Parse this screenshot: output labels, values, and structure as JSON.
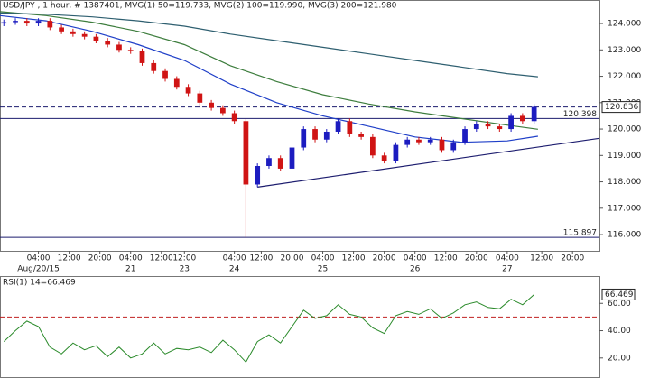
{
  "chart_data": [
    {
      "type": "candlestick",
      "title": "USD/JPY , 1 hour, # 1387401, MVG(1) 50=119.733, MVG(2) 100=119.990, MVG(3) 200=121.980",
      "xlim": [
        -10,
        146
      ],
      "ylim": [
        115.66,
        124.72
      ],
      "yticks": [
        {
          "value": 116,
          "label": "116.000"
        },
        {
          "value": 117,
          "label": "117.000"
        },
        {
          "value": 118,
          "label": "118.000"
        },
        {
          "value": 119,
          "label": "119.000"
        },
        {
          "value": 120,
          "label": "120.000"
        },
        {
          "value": 121,
          "label": "121.000"
        },
        {
          "value": 122,
          "label": "122.000"
        },
        {
          "value": 123,
          "label": "123.000"
        },
        {
          "value": 124,
          "label": "124.000"
        }
      ],
      "xticks": [
        {
          "value": 0,
          "label": "04:00"
        },
        {
          "value": 8,
          "label": "12:00"
        },
        {
          "value": 16,
          "label": "20:00"
        },
        {
          "value": 24,
          "label": "04:00"
        },
        {
          "value": 32,
          "label": "12:00"
        },
        {
          "value": 38,
          "label": "12:00"
        },
        {
          "value": 51,
          "label": "04:00"
        },
        {
          "value": 58,
          "label": "12:00"
        },
        {
          "value": 66,
          "label": "20:00"
        },
        {
          "value": 74,
          "label": "04:00"
        },
        {
          "value": 82,
          "label": "12:00"
        },
        {
          "value": 90,
          "label": "20:00"
        },
        {
          "value": 98,
          "label": "04:00"
        },
        {
          "value": 106,
          "label": "12:00"
        },
        {
          "value": 114,
          "label": "20:00"
        },
        {
          "value": 122,
          "label": "04:00"
        },
        {
          "value": 131,
          "label": "12:00"
        },
        {
          "value": 139,
          "label": "20:00"
        }
      ],
      "day_ticks": [
        {
          "value": 0,
          "label": "Aug/20/15"
        },
        {
          "value": 24,
          "label": "21"
        },
        {
          "value": 38,
          "label": "23"
        },
        {
          "value": 51,
          "label": "24"
        },
        {
          "value": 74,
          "label": "25"
        },
        {
          "value": 98,
          "label": "26"
        },
        {
          "value": 122,
          "label": "27"
        }
      ],
      "color_up": "#1c1cc0",
      "color_down": "#d01414",
      "x": [
        -9,
        -6,
        -3,
        0,
        3,
        6,
        9,
        12,
        15,
        18,
        21,
        24,
        27,
        30,
        33,
        36,
        39,
        42,
        45,
        48,
        51,
        54,
        57,
        60,
        63,
        66,
        69,
        72,
        75,
        78,
        81,
        84,
        87,
        90,
        93,
        96,
        99,
        102,
        105,
        108,
        111,
        114,
        117,
        120,
        123,
        126,
        129
      ],
      "open": [
        124.0,
        124.05,
        124.1,
        124.0,
        124.1,
        123.85,
        123.7,
        123.6,
        123.5,
        123.35,
        123.2,
        123.0,
        122.95,
        122.5,
        122.2,
        121.9,
        121.6,
        121.35,
        121.0,
        120.8,
        120.6,
        120.3,
        117.9,
        118.6,
        118.9,
        118.5,
        119.3,
        120.0,
        119.6,
        119.9,
        120.3,
        119.8,
        119.7,
        119.0,
        118.8,
        119.4,
        119.6,
        119.5,
        119.6,
        119.2,
        119.5,
        120.0,
        120.2,
        120.1,
        120.0,
        120.5,
        120.3
      ],
      "high": [
        124.15,
        124.2,
        124.2,
        124.2,
        124.2,
        123.95,
        123.8,
        123.7,
        123.6,
        123.45,
        123.3,
        123.1,
        123.05,
        122.6,
        122.3,
        122.0,
        121.7,
        121.45,
        121.1,
        120.9,
        120.7,
        120.4,
        118.7,
        119.0,
        119.0,
        119.4,
        120.1,
        120.1,
        120.0,
        120.4,
        120.4,
        119.9,
        119.8,
        119.1,
        119.5,
        119.7,
        119.7,
        119.7,
        119.7,
        119.6,
        120.1,
        120.3,
        120.3,
        120.2,
        120.6,
        120.6,
        120.95
      ],
      "low": [
        123.9,
        123.95,
        123.9,
        123.9,
        123.75,
        123.6,
        123.5,
        123.4,
        123.25,
        123.1,
        122.9,
        122.85,
        122.4,
        122.1,
        121.8,
        121.5,
        121.25,
        120.9,
        120.7,
        120.5,
        120.2,
        115.897,
        117.8,
        118.5,
        118.4,
        118.4,
        119.2,
        119.5,
        119.5,
        119.8,
        119.7,
        119.6,
        118.9,
        118.7,
        118.7,
        119.3,
        119.4,
        119.4,
        119.1,
        119.1,
        119.4,
        119.9,
        120.0,
        119.9,
        119.9,
        120.2,
        120.2
      ],
      "close": [
        124.05,
        124.1,
        124.0,
        124.1,
        123.85,
        123.7,
        123.6,
        123.5,
        123.35,
        123.2,
        123.0,
        122.95,
        122.5,
        122.2,
        121.9,
        121.6,
        121.35,
        121.0,
        120.8,
        120.6,
        120.3,
        117.9,
        118.6,
        118.9,
        118.5,
        119.3,
        120.0,
        119.6,
        119.9,
        120.3,
        119.8,
        119.7,
        119.0,
        118.8,
        119.4,
        119.6,
        119.5,
        119.6,
        119.2,
        119.5,
        120.0,
        120.2,
        120.1,
        120.0,
        120.5,
        120.3,
        120.84
      ],
      "series": [
        {
          "color": "#1f3fc8",
          "x": [
            -10,
            2,
            14,
            26,
            38,
            50,
            62,
            74,
            86,
            98,
            110,
            122,
            130
          ],
          "values": [
            124.3,
            124.1,
            123.7,
            123.2,
            122.6,
            121.7,
            121.0,
            120.5,
            120.1,
            119.7,
            119.5,
            119.55,
            119.73
          ]
        },
        {
          "color": "#3d7d3d",
          "x": [
            -10,
            2,
            14,
            26,
            38,
            50,
            62,
            74,
            86,
            98,
            110,
            122,
            130
          ],
          "values": [
            124.45,
            124.3,
            124.05,
            123.7,
            123.2,
            122.4,
            121.8,
            121.3,
            120.95,
            120.65,
            120.4,
            120.15,
            119.99
          ]
        },
        {
          "color": "#2e5f70",
          "x": [
            -10,
            2,
            14,
            26,
            38,
            50,
            62,
            74,
            86,
            98,
            110,
            122,
            130
          ],
          "values": [
            124.4,
            124.35,
            124.25,
            124.1,
            123.9,
            123.6,
            123.35,
            123.1,
            122.85,
            122.6,
            122.35,
            122.1,
            121.98
          ]
        }
      ],
      "trendline": {
        "color": "#1c1c6e",
        "x": [
          57,
          146
        ],
        "values": [
          117.8,
          119.65
        ]
      },
      "levels": [
        {
          "value": 120.836,
          "style": "dashed",
          "boxed": true
        },
        {
          "value": 120.398,
          "style": "solid"
        },
        {
          "value": 115.897,
          "style": "solid"
        }
      ],
      "level_color": "#1c1c6e"
    },
    {
      "type": "line",
      "title": "RSI(1) 14=66.469",
      "color": "#2a8a2a",
      "xlim": [
        -10,
        146
      ],
      "ylim": [
        6,
        78
      ],
      "yticks": [
        {
          "value": 20,
          "label": "20.00"
        },
        {
          "value": 40,
          "label": "40.00"
        },
        {
          "value": 60,
          "label": "60.00"
        }
      ],
      "levels": [
        {
          "value": 50,
          "style": "dashed"
        }
      ],
      "level_color": "#c02020",
      "x": [
        -9,
        -6,
        -3,
        0,
        3,
        6,
        9,
        12,
        15,
        18,
        21,
        24,
        27,
        30,
        33,
        36,
        39,
        42,
        45,
        48,
        51,
        54,
        57,
        60,
        63,
        66,
        69,
        72,
        75,
        78,
        81,
        84,
        87,
        90,
        93,
        96,
        99,
        102,
        105,
        108,
        111,
        114,
        117,
        120,
        123,
        126,
        129
      ],
      "values": [
        32,
        40,
        47,
        43,
        28,
        23,
        31,
        26,
        29,
        21,
        28,
        20,
        23,
        31,
        23,
        27,
        26,
        28,
        24,
        33,
        26,
        17,
        32,
        37,
        31,
        43,
        55,
        49,
        51,
        59,
        52,
        50,
        42,
        38,
        51,
        54,
        52,
        56,
        49,
        53,
        59,
        61,
        57,
        56,
        63,
        59,
        66.469
      ]
    }
  ]
}
